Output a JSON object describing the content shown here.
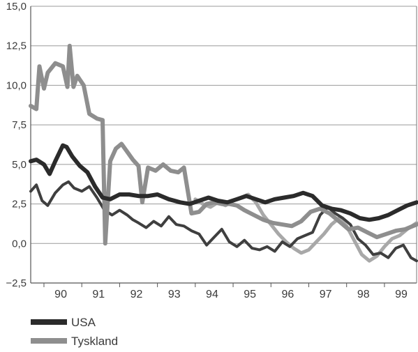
{
  "chart_data": {
    "type": "line",
    "title": "",
    "xlabel": "",
    "ylabel": "",
    "ylim": [
      -2.5,
      15.0
    ],
    "xlim": [
      1989.65,
      1999.85
    ],
    "yticks": [
      -2.5,
      0.0,
      2.5,
      5.0,
      7.5,
      10.0,
      12.5,
      15.0
    ],
    "ytick_labels": [
      "−2,5",
      "0,0",
      "2,5",
      "5,0",
      "7,5",
      "10,0",
      "12,5",
      "15,0"
    ],
    "xticks": [
      1990.0,
      1991.0,
      1992.0,
      1993.0,
      1994.0,
      1995.0,
      1996.0,
      1997.0,
      1998.0,
      1999.0
    ],
    "xtick_labels": [
      "90",
      "91",
      "92",
      "93",
      "94",
      "95",
      "96",
      "97",
      "98",
      "99"
    ],
    "grid": "horizontal",
    "legend": "bottom-left",
    "series": [
      {
        "name": "USA",
        "color": "#2b2b2b",
        "x": [
          1989.65,
          1989.8,
          1990.0,
          1990.15,
          1990.3,
          1990.5,
          1990.6,
          1990.75,
          1990.95,
          1991.15,
          1991.35,
          1991.55,
          1991.75,
          1992.0,
          1992.25,
          1992.5,
          1992.75,
          1993.0,
          1993.3,
          1993.6,
          1993.85,
          1994.1,
          1994.35,
          1994.6,
          1994.85,
          1995.1,
          1995.35,
          1995.6,
          1995.85,
          1996.1,
          1996.35,
          1996.6,
          1996.85,
          1997.1,
          1997.35,
          1997.6,
          1997.85,
          1998.1,
          1998.35,
          1998.6,
          1998.85,
          1999.1,
          1999.35,
          1999.6,
          1999.85
        ],
        "values": [
          5.2,
          5.3,
          5.0,
          4.4,
          5.2,
          6.2,
          6.1,
          5.5,
          4.9,
          4.5,
          3.6,
          2.9,
          2.8,
          3.1,
          3.1,
          3.0,
          3.0,
          3.1,
          2.8,
          2.6,
          2.5,
          2.7,
          2.9,
          2.7,
          2.6,
          2.8,
          3.0,
          2.8,
          2.6,
          2.8,
          2.9,
          3.0,
          3.2,
          3.0,
          2.4,
          2.2,
          2.1,
          1.9,
          1.6,
          1.5,
          1.6,
          1.8,
          2.1,
          2.4,
          2.6
        ]
      },
      {
        "name": "Tyskland",
        "color": "#8e8e8e",
        "x": [
          1989.65,
          1989.8,
          1989.88,
          1990.0,
          1990.1,
          1990.3,
          1990.5,
          1990.62,
          1990.68,
          1990.78,
          1990.88,
          1991.05,
          1991.2,
          1991.4,
          1991.55,
          1991.62,
          1991.75,
          1991.9,
          1992.05,
          1992.2,
          1992.35,
          1992.5,
          1992.6,
          1992.75,
          1992.95,
          1993.15,
          1993.35,
          1993.55,
          1993.7,
          1993.9,
          1994.1,
          1994.3,
          1994.5,
          1994.7,
          1994.9,
          1995.1,
          1995.3,
          1995.55,
          1995.8,
          1996.05,
          1996.3,
          1996.55,
          1996.8,
          1997.05,
          1997.3,
          1997.55,
          1997.8,
          1998.05,
          1998.3,
          1998.55,
          1998.8,
          1999.05,
          1999.3,
          1999.55,
          1999.85
        ],
        "values": [
          8.7,
          8.5,
          11.2,
          9.8,
          10.8,
          11.4,
          11.2,
          9.9,
          12.5,
          9.9,
          10.6,
          10.0,
          8.2,
          7.9,
          7.8,
          0.0,
          5.2,
          6.0,
          6.3,
          5.8,
          5.3,
          4.9,
          2.6,
          4.8,
          4.6,
          5.0,
          4.6,
          4.5,
          4.8,
          1.9,
          2.0,
          2.5,
          2.6,
          2.5,
          2.5,
          2.4,
          2.1,
          1.8,
          1.5,
          1.3,
          1.2,
          1.1,
          1.4,
          2.0,
          2.2,
          1.9,
          1.4,
          0.9,
          1.0,
          0.7,
          0.4,
          0.6,
          0.8,
          0.9,
          1.2
        ]
      },
      {
        "name": "",
        "color": "#3f3f3f",
        "x": [
          1989.65,
          1989.8,
          1989.95,
          1990.1,
          1990.3,
          1990.5,
          1990.65,
          1990.8,
          1991.0,
          1991.2,
          1991.4,
          1991.6,
          1991.8,
          1992.0,
          1992.2,
          1992.35,
          1992.5,
          1992.7,
          1992.9,
          1993.1,
          1993.3,
          1993.5,
          1993.7,
          1993.9,
          1994.1,
          1994.3,
          1994.5,
          1994.7,
          1994.9,
          1995.1,
          1995.3,
          1995.5,
          1995.7,
          1995.9,
          1996.1,
          1996.3,
          1996.5,
          1996.7,
          1996.9,
          1997.1,
          1997.3,
          1997.5,
          1997.7,
          1997.9,
          1998.1,
          1998.3,
          1998.5,
          1998.7,
          1998.9,
          1999.1,
          1999.3,
          1999.5,
          1999.7,
          1999.85
        ],
        "values": [
          3.3,
          3.7,
          2.7,
          2.4,
          3.2,
          3.7,
          3.9,
          3.5,
          3.3,
          3.6,
          2.9,
          2.1,
          1.8,
          2.1,
          1.8,
          1.5,
          1.3,
          1.0,
          1.4,
          1.1,
          1.7,
          1.2,
          1.1,
          0.8,
          0.6,
          -0.1,
          0.4,
          0.9,
          0.1,
          -0.2,
          0.2,
          -0.3,
          -0.4,
          -0.2,
          -0.5,
          0.1,
          -0.2,
          0.3,
          0.5,
          0.7,
          1.8,
          2.3,
          1.9,
          1.6,
          1.2,
          0.3,
          -0.1,
          -0.7,
          -0.6,
          -0.9,
          -0.3,
          -0.1,
          -0.9,
          -1.1
        ]
      },
      {
        "name": "",
        "color": "#a8a8a8",
        "x": [
          1994.0,
          1994.2,
          1994.4,
          1994.6,
          1994.8,
          1995.0,
          1995.2,
          1995.4,
          1995.6,
          1995.8,
          1996.0,
          1996.2,
          1996.4,
          1996.6,
          1996.8,
          1997.0,
          1997.2,
          1997.4,
          1997.6,
          1997.8,
          1998.0,
          1998.2,
          1998.4,
          1998.6,
          1998.8,
          1999.0,
          1999.2,
          1999.4,
          1999.6,
          1999.85
        ],
        "values": [
          2.8,
          2.5,
          2.3,
          2.6,
          2.4,
          2.7,
          2.9,
          3.1,
          2.6,
          1.8,
          1.2,
          0.6,
          0.1,
          -0.3,
          -0.6,
          -0.4,
          0.1,
          0.6,
          1.2,
          1.6,
          1.1,
          0.2,
          -0.7,
          -1.1,
          -0.8,
          -0.2,
          0.3,
          0.5,
          0.9,
          1.3
        ]
      }
    ]
  }
}
